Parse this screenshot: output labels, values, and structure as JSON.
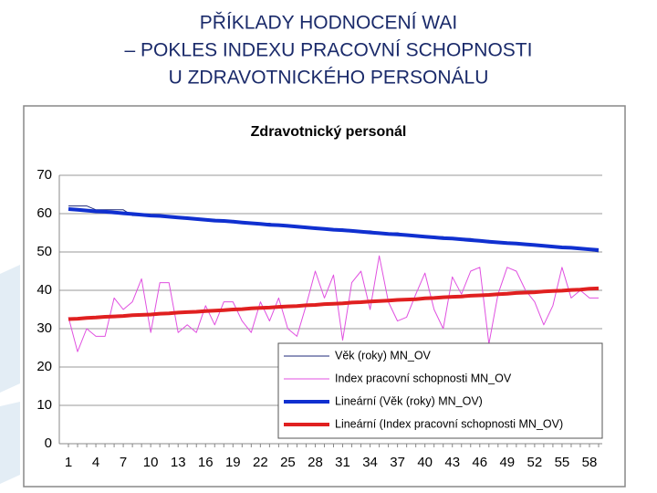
{
  "slide": {
    "title_lines": [
      "PŘÍKLADY HODNOCENÍ WAI",
      "– POKLES INDEXU PRACOVNÍ SCHOPNOSTI",
      "U ZDRAVOTNICKÉHO PERSONÁLU"
    ]
  },
  "chart_data": {
    "type": "line",
    "title": "Zdravotnický personál",
    "categories": [
      1,
      null,
      null,
      4,
      null,
      null,
      7,
      null,
      null,
      10,
      null,
      null,
      13,
      null,
      null,
      16,
      null,
      null,
      19,
      null,
      null,
      22,
      null,
      null,
      25,
      null,
      null,
      28,
      null,
      null,
      31,
      null,
      null,
      34,
      null,
      null,
      37,
      null,
      null,
      40,
      null,
      null,
      43,
      null,
      null,
      46,
      null,
      null,
      49,
      null,
      null,
      52,
      null,
      null,
      55,
      null,
      null,
      58,
      null
    ],
    "ylim": [
      0,
      70
    ],
    "yticks": [
      0,
      10,
      20,
      30,
      40,
      50,
      60,
      70
    ],
    "grid": true,
    "legend": "lower right",
    "series": [
      {
        "name": "Věk (roky) MN_OV",
        "color": "#1f2a7a",
        "line_width": 1,
        "values": [
          62,
          62,
          62,
          61,
          61,
          61,
          61,
          59.5,
          59.5,
          59.5,
          59.5,
          59.5,
          59,
          59,
          58.5,
          58.5,
          58.5,
          58,
          58,
          57.5,
          57.5,
          57.5,
          57.5,
          57,
          57,
          56.5,
          56.5,
          56.5,
          56,
          56,
          56,
          55.5,
          55.5,
          55.5,
          55,
          55,
          55,
          54.5,
          54.5,
          54,
          54,
          54,
          53.5,
          53.5,
          53.5,
          53,
          53,
          52.5,
          52.5,
          52.5,
          52,
          52,
          51.5,
          51.5,
          51,
          51,
          51,
          50.5,
          50
        ]
      },
      {
        "name": "Index pracovní schopnosti MN_OV",
        "color": "#e050e0",
        "line_width": 1,
        "values": [
          33,
          24,
          30,
          28,
          28,
          38,
          35,
          37,
          43,
          29,
          42,
          42,
          29,
          31,
          29,
          36,
          31,
          37,
          37,
          32,
          29,
          37,
          32,
          38,
          30,
          28,
          36,
          45,
          38,
          44,
          27,
          42,
          45,
          35,
          49,
          37,
          32,
          33,
          39,
          44.5,
          35,
          30,
          43.5,
          39,
          45,
          46,
          26,
          39,
          46,
          45,
          40,
          37,
          31,
          36,
          46,
          38,
          40,
          38,
          38
        ]
      },
      {
        "name": "Lineární (Věk (roky) MN_OV)",
        "color": "#1030d0",
        "line_width": 4,
        "values": [
          61.2,
          61.0,
          60.8,
          60.6,
          60.5,
          60.3,
          60.1,
          59.9,
          59.7,
          59.5,
          59.4,
          59.2,
          59.0,
          58.8,
          58.6,
          58.4,
          58.2,
          58.1,
          57.9,
          57.7,
          57.5,
          57.3,
          57.1,
          57.0,
          56.8,
          56.6,
          56.4,
          56.2,
          56.0,
          55.8,
          55.7,
          55.5,
          55.3,
          55.1,
          54.9,
          54.7,
          54.6,
          54.4,
          54.2,
          54.0,
          53.8,
          53.6,
          53.5,
          53.3,
          53.1,
          52.9,
          52.7,
          52.5,
          52.3,
          52.2,
          52.0,
          51.8,
          51.6,
          51.4,
          51.2,
          51.1,
          50.9,
          50.7,
          50.5
        ]
      },
      {
        "name": "Lineární (Index pracovní schopnosti MN_OV)",
        "color": "#e02020",
        "line_width": 4,
        "values": [
          32.5,
          32.6,
          32.8,
          32.9,
          33.1,
          33.2,
          33.3,
          33.5,
          33.6,
          33.7,
          33.9,
          34.0,
          34.2,
          34.3,
          34.4,
          34.6,
          34.7,
          34.8,
          35.0,
          35.1,
          35.3,
          35.4,
          35.5,
          35.7,
          35.8,
          35.9,
          36.1,
          36.2,
          36.4,
          36.5,
          36.6,
          36.8,
          36.9,
          37.1,
          37.2,
          37.3,
          37.5,
          37.6,
          37.7,
          37.9,
          38.0,
          38.2,
          38.3,
          38.4,
          38.6,
          38.7,
          38.8,
          39.0,
          39.1,
          39.3,
          39.4,
          39.5,
          39.7,
          39.8,
          39.9,
          40.1,
          40.2,
          40.4,
          40.5
        ]
      }
    ]
  }
}
